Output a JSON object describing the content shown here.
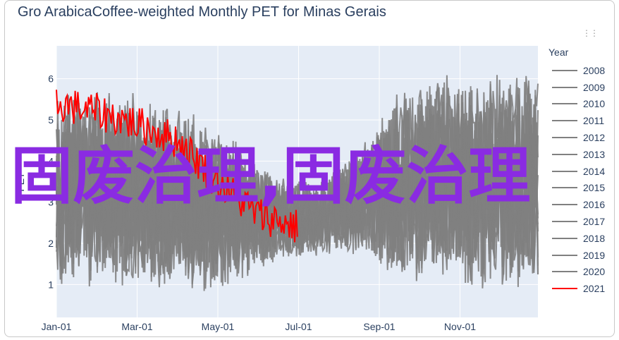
{
  "chart_data": {
    "type": "line",
    "title": "Gro ArabicaCoffee-weighted Monthly PET for Minas Gerais",
    "ylabel": "PET",
    "ylim": [
      0.2,
      6.8
    ],
    "y_ticks": [
      1,
      2,
      3,
      4,
      5,
      6
    ],
    "x_ticks": [
      "Jan-01",
      "Mar-01",
      "May-01",
      "Jul-01",
      "Sep-01",
      "Nov-01"
    ],
    "grid": true,
    "legend": {
      "title": "Year",
      "placement": "right"
    },
    "series_colors": {
      "default": "#808080",
      "highlight": "#ff0000"
    },
    "series": [
      {
        "name": "2008",
        "color": "#808080"
      },
      {
        "name": "2009",
        "color": "#808080"
      },
      {
        "name": "2010",
        "color": "#808080"
      },
      {
        "name": "2011",
        "color": "#808080"
      },
      {
        "name": "2012",
        "color": "#808080"
      },
      {
        "name": "2013",
        "color": "#808080"
      },
      {
        "name": "2014",
        "color": "#808080"
      },
      {
        "name": "2015",
        "color": "#808080"
      },
      {
        "name": "2016",
        "color": "#808080"
      },
      {
        "name": "2017",
        "color": "#808080"
      },
      {
        "name": "2018",
        "color": "#808080"
      },
      {
        "name": "2019",
        "color": "#808080"
      },
      {
        "name": "2020",
        "color": "#808080"
      },
      {
        "name": "2021",
        "color": "#ff0000"
      }
    ],
    "envelope": {
      "months": [
        "Jan-01",
        "Feb-01",
        "Mar-01",
        "Apr-01",
        "May-01",
        "Jun-01",
        "Jul-01",
        "Aug-01",
        "Sep-01",
        "Oct-01",
        "Nov-01",
        "Dec-01"
      ],
      "low": [
        1.0,
        0.8,
        0.9,
        0.7,
        0.8,
        1.5,
        1.7,
        1.6,
        0.9,
        0.9,
        0.7,
        0.6
      ],
      "high": [
        6.1,
        5.9,
        5.6,
        5.3,
        4.8,
        3.7,
        3.5,
        4.6,
        6.0,
        6.2,
        6.3,
        6.2
      ]
    },
    "highlight_2021": {
      "x": [
        "Jan-01",
        "Feb-01",
        "Mar-01",
        "Apr-01",
        "May-01",
        "Jun-01",
        "Jun-30"
      ],
      "y": [
        5.4,
        5.2,
        4.9,
        4.5,
        3.5,
        2.7,
        2.4
      ]
    }
  },
  "overlay_text": "固废治理,固废治理"
}
